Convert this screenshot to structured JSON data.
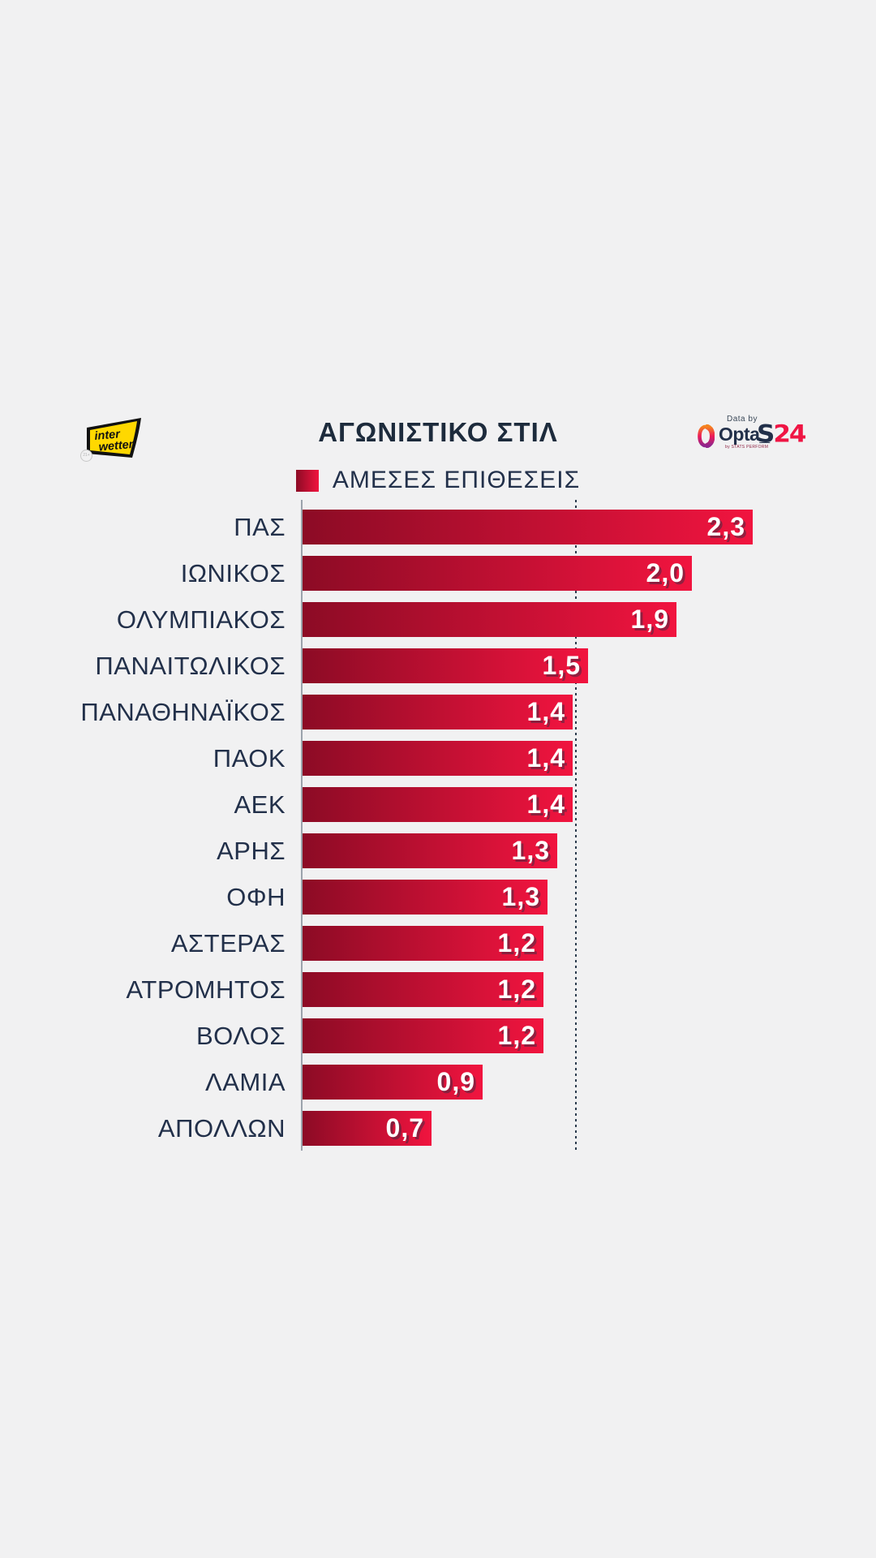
{
  "page": {
    "background": "#f1f1f2"
  },
  "header": {
    "title": "ΑΓΩΝΙΣΤΙΚΟ ΣΤΙΛ",
    "interwetten": {
      "line1": "inter",
      "line2": "wetten",
      "age_badge": "21+"
    },
    "opta": {
      "data_by": "Data by",
      "name": "Opta_",
      "sub": "by STATS PERFORM"
    },
    "s24": {
      "part1": "S",
      "part2": "24"
    }
  },
  "legend": {
    "label": "ΑΜΕΣΕΣ ΕΠΙΘΕΣΕΙΣ"
  },
  "chart_data": {
    "type": "bar",
    "orientation": "horizontal",
    "title": "ΑΓΩΝΙΣΤΙΚΟ ΣΤΙΛ",
    "series_label": "ΑΜΕΣΕΣ ΕΠΙΘΕΣΕΙΣ",
    "categories": [
      "ΠΑΣ",
      "ΙΩΝΙΚΟΣ",
      "ΟΛΥΜΠΙΑΚΟΣ",
      "ΠΑΝΑΙΤΩΛΙΚΟΣ",
      "ΠΑΝΑΘΗΝΑΪΚΟΣ",
      "ΠΑΟΚ",
      "ΑΕΚ",
      "ΑΡΗΣ",
      "ΟΦΗ",
      "ΑΣΤΕΡΑΣ",
      "ΑΤΡΟΜΗΤΟΣ",
      "ΒΟΛΟΣ",
      "ΛΑΜΙΑ",
      "ΑΠΟΛΛΩΝ"
    ],
    "values": [
      2.3,
      2.0,
      1.9,
      1.5,
      1.4,
      1.4,
      1.4,
      1.3,
      1.3,
      1.2,
      1.2,
      1.2,
      0.9,
      0.7
    ],
    "values_display": [
      "2,3",
      "2,0",
      "1,9",
      "1,5",
      "1,4",
      "1,4",
      "1,4",
      "1,3",
      "1,3",
      "1,2",
      "1,2",
      "1,2",
      "0,9",
      "0,7"
    ],
    "values_precise": [
      2.3,
      1.99,
      1.91,
      1.46,
      1.38,
      1.38,
      1.38,
      1.3,
      1.25,
      1.23,
      1.23,
      1.23,
      0.92,
      0.66
    ],
    "average_line": 1.4,
    "xlim": [
      0,
      2.45
    ],
    "grid": false,
    "value_labels": "inside-end",
    "colors": {
      "bar_gradient_start": "#8c0b25",
      "bar_gradient_end": "#f1143f",
      "text_navy": "#22304a",
      "axis_gray": "#9ba3ac",
      "background": "#f1f1f2",
      "s24_red": "#ef1544",
      "interwetten_yellow": "#ffd800"
    }
  }
}
